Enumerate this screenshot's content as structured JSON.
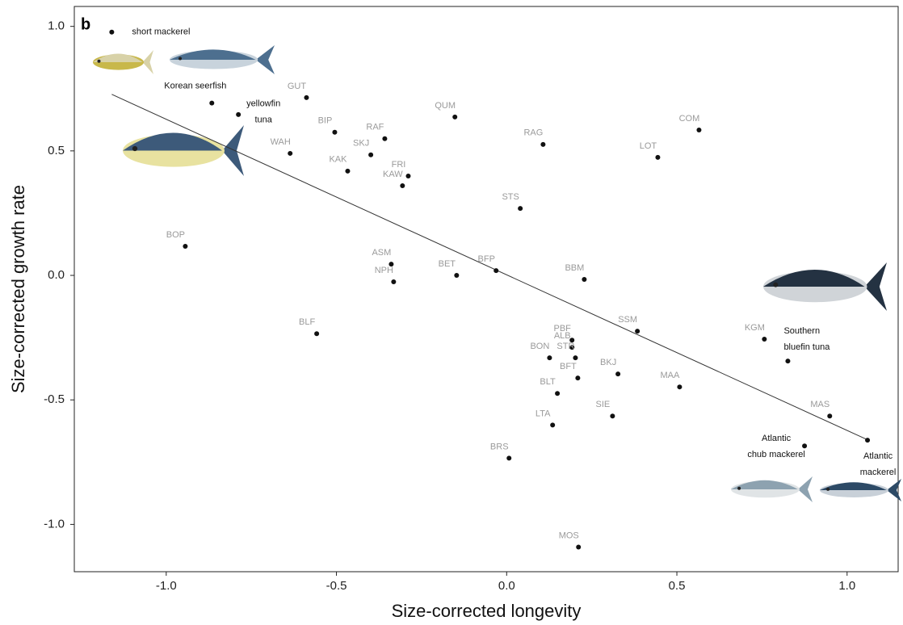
{
  "chart_data": {
    "type": "scatter",
    "panel_label": "b",
    "x_label": "Size-corrected longevity",
    "y_label": "Size-corrected growth rate",
    "xlim": [
      -1.27,
      1.15
    ],
    "ylim": [
      -1.19,
      1.08
    ],
    "xticks": [
      {
        "value": -1,
        "label": "-1.0"
      },
      {
        "value": -0.5,
        "label": "-0.5"
      },
      {
        "value": 0,
        "label": "0.0"
      },
      {
        "value": 0.5,
        "label": "0.5"
      },
      {
        "value": 1,
        "label": "1.0"
      }
    ],
    "yticks": [
      {
        "value": 1,
        "label": "1.0"
      },
      {
        "value": 0.5,
        "label": "0.5"
      },
      {
        "value": 0,
        "label": "0.0"
      },
      {
        "value": -0.5,
        "label": "-0.5"
      },
      {
        "value": -1,
        "label": "-1.0"
      }
    ],
    "point_color": "#111111",
    "fit_line": {
      "x": [
        -1.16,
        1.063
      ],
      "y": [
        0.727,
        -0.662
      ],
      "color": "#333333"
    },
    "points": [
      {
        "label": [
          "short mackerel"
        ],
        "x": -1.16,
        "y": 0.977,
        "label_color": "#111111"
      },
      {
        "label": [
          "Korean seerfish"
        ],
        "x": -0.866,
        "y": 0.692,
        "label_color": "#111111"
      },
      {
        "label": [
          "yellowfin",
          "tuna"
        ],
        "x": -0.788,
        "y": 0.646,
        "label_color": "#111111"
      },
      {
        "label": [
          "Southern",
          "bluefin tuna"
        ],
        "x": 0.826,
        "y": -0.344,
        "label_color": "#111111"
      },
      {
        "label": [
          "Atlantic",
          "chub mackerel"
        ],
        "x": 0.875,
        "y": -0.685,
        "label_color": "#111111"
      },
      {
        "label": [
          "Atlantic",
          "mackerel"
        ],
        "x": 1.06,
        "y": -0.662,
        "label_color": "#111111"
      },
      {
        "label": "GUT",
        "x": -0.588,
        "y": 0.714,
        "label_color": "#9a9a9a"
      },
      {
        "label": "BIP",
        "x": -0.505,
        "y": 0.575,
        "label_color": "#9a9a9a"
      },
      {
        "label": "RAF",
        "x": -0.358,
        "y": 0.549,
        "label_color": "#9a9a9a"
      },
      {
        "label": "SKJ",
        "x": -0.399,
        "y": 0.484,
        "label_color": "#9a9a9a"
      },
      {
        "label": "WAH",
        "x": -0.636,
        "y": 0.49,
        "label_color": "#9a9a9a"
      },
      {
        "label": "KAK",
        "x": -0.467,
        "y": 0.419,
        "label_color": "#9a9a9a"
      },
      {
        "label": "FRI",
        "x": -0.289,
        "y": 0.399,
        "label_color": "#9a9a9a"
      },
      {
        "label": "KAW",
        "x": -0.306,
        "y": 0.36,
        "label_color": "#9a9a9a"
      },
      {
        "label": "QUM",
        "x": -0.152,
        "y": 0.636,
        "label_color": "#9a9a9a"
      },
      {
        "label": "RAG",
        "x": 0.107,
        "y": 0.526,
        "label_color": "#9a9a9a"
      },
      {
        "label": "COM",
        "x": 0.565,
        "y": 0.584,
        "label_color": "#9a9a9a"
      },
      {
        "label": "LOT",
        "x": 0.444,
        "y": 0.474,
        "label_color": "#9a9a9a"
      },
      {
        "label": "STS",
        "x": 0.04,
        "y": 0.269,
        "label_color": "#9a9a9a"
      },
      {
        "label": "BOP",
        "x": -0.944,
        "y": 0.117,
        "label_color": "#9a9a9a"
      },
      {
        "label": "ASM",
        "x": -0.339,
        "y": 0.045,
        "label_color": "#9a9a9a"
      },
      {
        "label": "NPH",
        "x": -0.332,
        "y": -0.026,
        "label_color": "#9a9a9a"
      },
      {
        "label": "BET",
        "x": -0.147,
        "y": 0.0,
        "label_color": "#9a9a9a"
      },
      {
        "label": "BFP",
        "x": -0.031,
        "y": 0.019,
        "label_color": "#9a9a9a"
      },
      {
        "label": "BBM",
        "x": 0.228,
        "y": -0.016,
        "label_color": "#9a9a9a"
      },
      {
        "label": "BLF",
        "x": -0.558,
        "y": -0.234,
        "label_color": "#9a9a9a"
      },
      {
        "label": "SSM",
        "x": 0.384,
        "y": -0.224,
        "label_color": "#9a9a9a"
      },
      {
        "label": "PBF",
        "x": 0.192,
        "y": -0.26,
        "label_color": "#9a9a9a"
      },
      {
        "label": "ALB",
        "x": 0.192,
        "y": -0.289,
        "label_color": "#9a9a9a"
      },
      {
        "label": "STR",
        "x": 0.202,
        "y": -0.331,
        "label_color": "#9a9a9a"
      },
      {
        "label": "BON",
        "x": 0.126,
        "y": -0.331,
        "label_color": "#9a9a9a"
      },
      {
        "label": "BFT",
        "x": 0.209,
        "y": -0.412,
        "label_color": "#9a9a9a"
      },
      {
        "label": "BKJ",
        "x": 0.327,
        "y": -0.396,
        "label_color": "#9a9a9a"
      },
      {
        "label": "BLT",
        "x": 0.149,
        "y": -0.474,
        "label_color": "#9a9a9a"
      },
      {
        "label": "KGM",
        "x": 0.757,
        "y": -0.256,
        "label_color": "#9a9a9a"
      },
      {
        "label": "MAA",
        "x": 0.508,
        "y": -0.448,
        "label_color": "#9a9a9a"
      },
      {
        "label": "SIE",
        "x": 0.311,
        "y": -0.565,
        "label_color": "#9a9a9a"
      },
      {
        "label": "LTA",
        "x": 0.135,
        "y": -0.601,
        "label_color": "#9a9a9a"
      },
      {
        "label": "MAS",
        "x": 0.949,
        "y": -0.565,
        "label_color": "#9a9a9a"
      },
      {
        "label": "BRS",
        "x": 0.007,
        "y": -0.734,
        "label_color": "#9a9a9a"
      },
      {
        "label": "MOS",
        "x": 0.211,
        "y": -1.091,
        "label_color": "#9a9a9a"
      }
    ]
  }
}
